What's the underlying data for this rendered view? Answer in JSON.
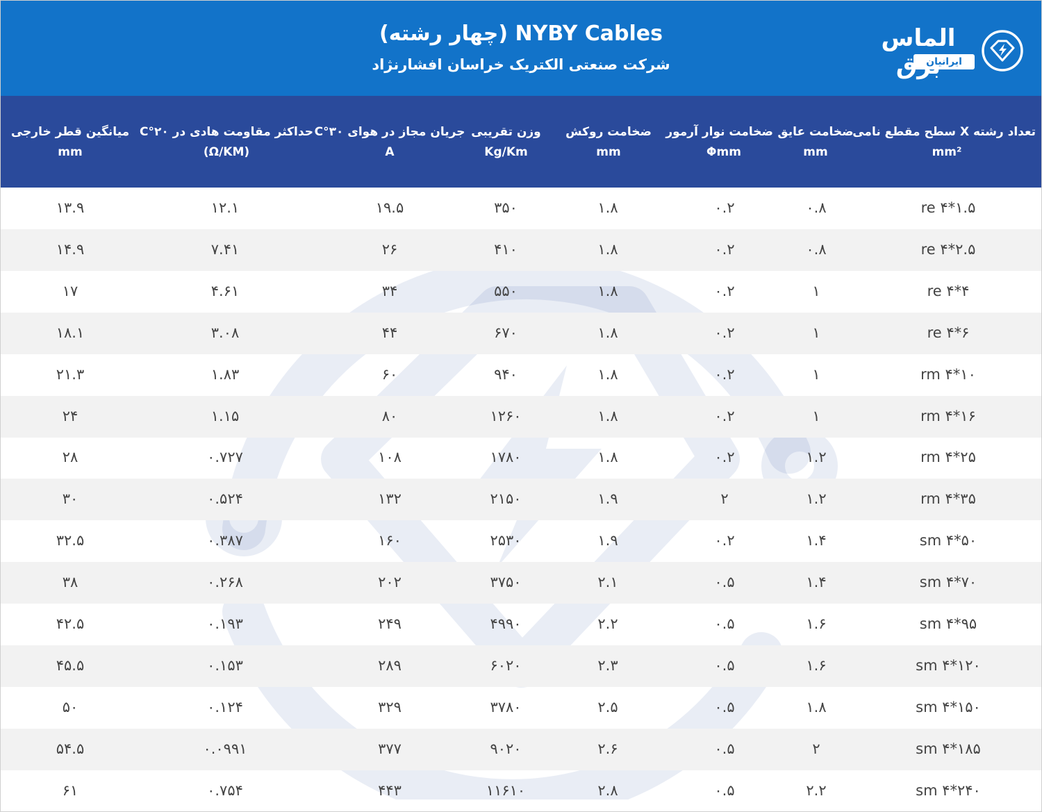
{
  "header": {
    "title": "NYBY Cables (چهار رشته)",
    "subtitle": "شرکت صنعتی الکتریک خراسان افشارنژاد",
    "logo_name": "الماس برق",
    "logo_sub": "ایرانیان",
    "logo_icon": "diamond-bolt-icon",
    "background": "#1273c9"
  },
  "table": {
    "header_background": "#2a4a9b",
    "row_alt_background": "#f2f2f2",
    "columns": [
      {
        "title": "تعداد رشته X سطح مقطع نامی",
        "unit": "mm²"
      },
      {
        "title": "ضخامت عایق",
        "unit": "mm"
      },
      {
        "title": "ضخامت نوار آرمور",
        "unit": "Φmm"
      },
      {
        "title": "ضخامت روکش",
        "unit": "mm"
      },
      {
        "title": "وزن تقریبی",
        "unit": "Kg/Km"
      },
      {
        "title": "جریان مجاز در هوای ۳۰°C",
        "unit": "A"
      },
      {
        "title": "حداکثر مقاومت هادی در ۲۰°C",
        "unit": "(Ω/KM)"
      },
      {
        "title": "میانگین قطر خارجی",
        "unit": "mm"
      }
    ],
    "rows": [
      [
        "re ۴*۱.۵",
        "۰.۸",
        "۰.۲",
        "۱.۸",
        "۳۵۰",
        "۱۹.۵",
        "۱۲.۱",
        "۱۳.۹"
      ],
      [
        "re ۴*۲.۵",
        "۰.۸",
        "۰.۲",
        "۱.۸",
        "۴۱۰",
        "۲۶",
        "۷.۴۱",
        "۱۴.۹"
      ],
      [
        "re ۴*۴",
        "۱",
        "۰.۲",
        "۱.۸",
        "۵۵۰",
        "۳۴",
        "۴.۶۱",
        "۱۷"
      ],
      [
        "re ۴*۶",
        "۱",
        "۰.۲",
        "۱.۸",
        "۶۷۰",
        "۴۴",
        "۳.۰۸",
        "۱۸.۱"
      ],
      [
        "rm ۴*۱۰",
        "۱",
        "۰.۲",
        "۱.۸",
        "۹۴۰",
        "۶۰",
        "۱.۸۳",
        "۲۱.۳"
      ],
      [
        "rm ۴*۱۶",
        "۱",
        "۰.۲",
        "۱.۸",
        "۱۲۶۰",
        "۸۰",
        "۱.۱۵",
        "۲۴"
      ],
      [
        "rm ۴*۲۵",
        "۱.۲",
        "۰.۲",
        "۱.۸",
        "۱۷۸۰",
        "۱۰۸",
        "۰.۷۲۷",
        "۲۸"
      ],
      [
        "rm ۴*۳۵",
        "۱.۲",
        "۲",
        "۱.۹",
        "۲۱۵۰",
        "۱۳۲",
        "۰.۵۲۴",
        "۳۰"
      ],
      [
        "sm ۴*۵۰",
        "۱.۴",
        "۰.۲",
        "۱.۹",
        "۲۵۳۰",
        "۱۶۰",
        "۰.۳۸۷",
        "۳۲.۵"
      ],
      [
        "sm ۴*۷۰",
        "۱.۴",
        "۰.۵",
        "۲.۱",
        "۳۷۵۰",
        "۲۰۲",
        "۰.۲۶۸",
        "۳۸"
      ],
      [
        "sm ۴*۹۵",
        "۱.۶",
        "۰.۵",
        "۲.۲",
        "۴۹۹۰",
        "۲۴۹",
        "۰.۱۹۳",
        "۴۲.۵"
      ],
      [
        "sm ۴*۱۲۰",
        "۱.۶",
        "۰.۵",
        "۲.۳",
        "۶۰۲۰",
        "۲۸۹",
        "۰.۱۵۳",
        "۴۵.۵"
      ],
      [
        "sm ۴*۱۵۰",
        "۱.۸",
        "۰.۵",
        "۲.۵",
        "۳۷۸۰",
        "۳۲۹",
        "۰.۱۲۴",
        "۵۰"
      ],
      [
        "sm ۴*۱۸۵",
        "۲",
        "۰.۵",
        "۲.۶",
        "۹۰۲۰",
        "۳۷۷",
        "۰.۰۹۹۱",
        "۵۴.۵"
      ],
      [
        "sm ۴*۲۴۰",
        "۲.۲",
        "۰.۵",
        "۲.۸",
        "۱۱۶۱۰",
        "۴۴۳",
        "۰.۷۵۴",
        "۶۱"
      ]
    ]
  },
  "watermark": {
    "icon": "diamond-bolt-watermark-icon",
    "color": "#2a4a9b"
  }
}
